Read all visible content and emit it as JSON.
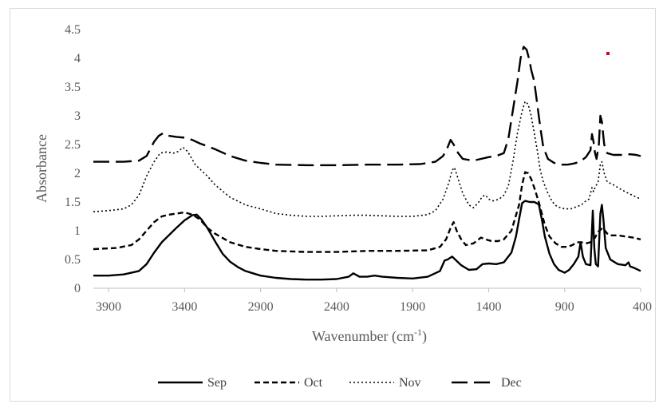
{
  "chart_data": {
    "type": "line",
    "xlabel": "Wavenumber (cm",
    "xlabel_sup": "-1",
    "xlabel_close": ")",
    "ylabel": "Absorbance",
    "xlim": [
      4000,
      400
    ],
    "x_reversed": true,
    "ylim": [
      0,
      4.5
    ],
    "y_ticks": [
      0,
      0.5,
      1,
      1.5,
      2,
      2.5,
      3,
      3.5,
      4,
      4.5
    ],
    "y_tick_labels": [
      "0",
      "0.5",
      "1",
      "1.5",
      "2",
      "2.5",
      "3",
      "3.5",
      "4",
      "4.5"
    ],
    "x_ticks": [
      3900,
      3400,
      2900,
      2400,
      1900,
      1400,
      900,
      400
    ],
    "x_tick_labels": [
      "3900",
      "3400",
      "2900",
      "2400",
      "1900",
      "1400",
      "900",
      "400"
    ],
    "grid": false,
    "legend_position": "bottom",
    "series": [
      {
        "name": "Sep",
        "style": "solid",
        "points": [
          [
            4000,
            0.22
          ],
          [
            3900,
            0.22
          ],
          [
            3800,
            0.24
          ],
          [
            3700,
            0.3
          ],
          [
            3650,
            0.42
          ],
          [
            3600,
            0.62
          ],
          [
            3550,
            0.8
          ],
          [
            3500,
            0.93
          ],
          [
            3450,
            1.06
          ],
          [
            3400,
            1.18
          ],
          [
            3350,
            1.27
          ],
          [
            3320,
            1.28
          ],
          [
            3290,
            1.2
          ],
          [
            3250,
            1.05
          ],
          [
            3200,
            0.82
          ],
          [
            3150,
            0.6
          ],
          [
            3100,
            0.46
          ],
          [
            3050,
            0.37
          ],
          [
            3000,
            0.3
          ],
          [
            2950,
            0.26
          ],
          [
            2900,
            0.22
          ],
          [
            2800,
            0.18
          ],
          [
            2700,
            0.16
          ],
          [
            2600,
            0.15
          ],
          [
            2500,
            0.15
          ],
          [
            2400,
            0.16
          ],
          [
            2320,
            0.2
          ],
          [
            2290,
            0.26
          ],
          [
            2250,
            0.2
          ],
          [
            2200,
            0.2
          ],
          [
            2150,
            0.22
          ],
          [
            2100,
            0.2
          ],
          [
            2000,
            0.18
          ],
          [
            1900,
            0.17
          ],
          [
            1800,
            0.2
          ],
          [
            1720,
            0.3
          ],
          [
            1690,
            0.48
          ],
          [
            1670,
            0.5
          ],
          [
            1640,
            0.55
          ],
          [
            1620,
            0.5
          ],
          [
            1580,
            0.4
          ],
          [
            1530,
            0.32
          ],
          [
            1480,
            0.33
          ],
          [
            1440,
            0.42
          ],
          [
            1400,
            0.43
          ],
          [
            1350,
            0.42
          ],
          [
            1300,
            0.45
          ],
          [
            1250,
            0.62
          ],
          [
            1220,
            0.9
          ],
          [
            1200,
            1.2
          ],
          [
            1180,
            1.48
          ],
          [
            1160,
            1.52
          ],
          [
            1130,
            1.5
          ],
          [
            1100,
            1.5
          ],
          [
            1070,
            1.46
          ],
          [
            1050,
            1.2
          ],
          [
            1030,
            0.9
          ],
          [
            1000,
            0.6
          ],
          [
            970,
            0.42
          ],
          [
            940,
            0.32
          ],
          [
            900,
            0.27
          ],
          [
            870,
            0.32
          ],
          [
            840,
            0.42
          ],
          [
            810,
            0.55
          ],
          [
            795,
            0.8
          ],
          [
            780,
            0.55
          ],
          [
            760,
            0.42
          ],
          [
            730,
            0.4
          ],
          [
            715,
            1.35
          ],
          [
            705,
            0.7
          ],
          [
            695,
            0.42
          ],
          [
            680,
            0.38
          ],
          [
            665,
            1.3
          ],
          [
            655,
            1.45
          ],
          [
            645,
            1.2
          ],
          [
            630,
            0.7
          ],
          [
            600,
            0.5
          ],
          [
            550,
            0.42
          ],
          [
            500,
            0.4
          ],
          [
            480,
            0.45
          ],
          [
            470,
            0.38
          ],
          [
            440,
            0.35
          ],
          [
            400,
            0.3
          ]
        ]
      },
      {
        "name": "Oct",
        "style": "dash",
        "points": [
          [
            4000,
            0.68
          ],
          [
            3850,
            0.7
          ],
          [
            3750,
            0.75
          ],
          [
            3700,
            0.85
          ],
          [
            3650,
            1.0
          ],
          [
            3600,
            1.15
          ],
          [
            3550,
            1.25
          ],
          [
            3500,
            1.28
          ],
          [
            3450,
            1.3
          ],
          [
            3400,
            1.32
          ],
          [
            3350,
            1.28
          ],
          [
            3300,
            1.2
          ],
          [
            3250,
            1.05
          ],
          [
            3200,
            0.95
          ],
          [
            3100,
            0.8
          ],
          [
            3000,
            0.72
          ],
          [
            2900,
            0.68
          ],
          [
            2800,
            0.65
          ],
          [
            2600,
            0.63
          ],
          [
            2400,
            0.63
          ],
          [
            2200,
            0.65
          ],
          [
            2000,
            0.65
          ],
          [
            1800,
            0.66
          ],
          [
            1720,
            0.72
          ],
          [
            1680,
            0.85
          ],
          [
            1650,
            1.05
          ],
          [
            1630,
            1.15
          ],
          [
            1610,
            1.0
          ],
          [
            1580,
            0.85
          ],
          [
            1550,
            0.75
          ],
          [
            1500,
            0.78
          ],
          [
            1450,
            0.88
          ],
          [
            1420,
            0.85
          ],
          [
            1380,
            0.82
          ],
          [
            1340,
            0.82
          ],
          [
            1300,
            0.85
          ],
          [
            1250,
            1.0
          ],
          [
            1200,
            1.45
          ],
          [
            1180,
            1.8
          ],
          [
            1160,
            2.02
          ],
          [
            1140,
            2.0
          ],
          [
            1120,
            1.9
          ],
          [
            1100,
            1.75
          ],
          [
            1070,
            1.5
          ],
          [
            1050,
            1.3
          ],
          [
            1030,
            1.1
          ],
          [
            1000,
            0.9
          ],
          [
            960,
            0.78
          ],
          [
            920,
            0.72
          ],
          [
            880,
            0.72
          ],
          [
            850,
            0.75
          ],
          [
            820,
            0.8
          ],
          [
            790,
            0.8
          ],
          [
            760,
            0.78
          ],
          [
            730,
            0.8
          ],
          [
            700,
            0.88
          ],
          [
            680,
            0.98
          ],
          [
            650,
            1.05
          ],
          [
            620,
            0.95
          ],
          [
            600,
            0.92
          ],
          [
            550,
            0.92
          ],
          [
            500,
            0.9
          ],
          [
            450,
            0.88
          ],
          [
            400,
            0.85
          ]
        ]
      },
      {
        "name": "Nov",
        "style": "dot",
        "points": [
          [
            4000,
            1.33
          ],
          [
            3900,
            1.35
          ],
          [
            3800,
            1.38
          ],
          [
            3750,
            1.45
          ],
          [
            3700,
            1.62
          ],
          [
            3650,
            1.95
          ],
          [
            3600,
            2.2
          ],
          [
            3560,
            2.35
          ],
          [
            3520,
            2.37
          ],
          [
            3470,
            2.35
          ],
          [
            3440,
            2.38
          ],
          [
            3410,
            2.45
          ],
          [
            3380,
            2.38
          ],
          [
            3330,
            2.15
          ],
          [
            3250,
            1.95
          ],
          [
            3200,
            1.8
          ],
          [
            3100,
            1.58
          ],
          [
            3000,
            1.45
          ],
          [
            2900,
            1.38
          ],
          [
            2800,
            1.3
          ],
          [
            2700,
            1.27
          ],
          [
            2600,
            1.25
          ],
          [
            2500,
            1.25
          ],
          [
            2400,
            1.26
          ],
          [
            2300,
            1.27
          ],
          [
            2200,
            1.27
          ],
          [
            2100,
            1.26
          ],
          [
            2000,
            1.25
          ],
          [
            1900,
            1.25
          ],
          [
            1800,
            1.28
          ],
          [
            1750,
            1.35
          ],
          [
            1700,
            1.55
          ],
          [
            1660,
            1.85
          ],
          [
            1640,
            2.05
          ],
          [
            1625,
            2.1
          ],
          [
            1600,
            1.9
          ],
          [
            1570,
            1.65
          ],
          [
            1530,
            1.45
          ],
          [
            1500,
            1.4
          ],
          [
            1470,
            1.48
          ],
          [
            1440,
            1.6
          ],
          [
            1420,
            1.62
          ],
          [
            1400,
            1.55
          ],
          [
            1370,
            1.52
          ],
          [
            1330,
            1.55
          ],
          [
            1300,
            1.62
          ],
          [
            1270,
            1.78
          ],
          [
            1240,
            2.2
          ],
          [
            1210,
            2.7
          ],
          [
            1180,
            3.08
          ],
          [
            1160,
            3.25
          ],
          [
            1140,
            3.2
          ],
          [
            1120,
            3.0
          ],
          [
            1100,
            2.7
          ],
          [
            1080,
            2.4
          ],
          [
            1060,
            2.05
          ],
          [
            1040,
            1.85
          ],
          [
            1010,
            1.65
          ],
          [
            980,
            1.5
          ],
          [
            950,
            1.42
          ],
          [
            900,
            1.38
          ],
          [
            860,
            1.38
          ],
          [
            820,
            1.42
          ],
          [
            790,
            1.45
          ],
          [
            760,
            1.52
          ],
          [
            740,
            1.55
          ],
          [
            720,
            1.75
          ],
          [
            710,
            1.68
          ],
          [
            700,
            1.75
          ],
          [
            680,
            1.85
          ],
          [
            665,
            2.15
          ],
          [
            655,
            2.2
          ],
          [
            640,
            2.0
          ],
          [
            620,
            1.85
          ],
          [
            580,
            1.8
          ],
          [
            530,
            1.72
          ],
          [
            480,
            1.65
          ],
          [
            440,
            1.6
          ],
          [
            400,
            1.55
          ]
        ]
      },
      {
        "name": "Dec",
        "style": "longdash",
        "points": [
          [
            4000,
            2.2
          ],
          [
            3900,
            2.2
          ],
          [
            3800,
            2.2
          ],
          [
            3700,
            2.22
          ],
          [
            3650,
            2.3
          ],
          [
            3600,
            2.55
          ],
          [
            3570,
            2.65
          ],
          [
            3540,
            2.7
          ],
          [
            3500,
            2.65
          ],
          [
            3450,
            2.63
          ],
          [
            3400,
            2.62
          ],
          [
            3350,
            2.58
          ],
          [
            3300,
            2.52
          ],
          [
            3200,
            2.42
          ],
          [
            3100,
            2.3
          ],
          [
            3000,
            2.22
          ],
          [
            2900,
            2.18
          ],
          [
            2800,
            2.15
          ],
          [
            2600,
            2.14
          ],
          [
            2400,
            2.14
          ],
          [
            2200,
            2.15
          ],
          [
            2000,
            2.15
          ],
          [
            1850,
            2.16
          ],
          [
            1750,
            2.2
          ],
          [
            1700,
            2.3
          ],
          [
            1670,
            2.45
          ],
          [
            1650,
            2.58
          ],
          [
            1630,
            2.5
          ],
          [
            1600,
            2.35
          ],
          [
            1570,
            2.25
          ],
          [
            1500,
            2.22
          ],
          [
            1450,
            2.25
          ],
          [
            1400,
            2.28
          ],
          [
            1350,
            2.3
          ],
          [
            1300,
            2.35
          ],
          [
            1270,
            2.6
          ],
          [
            1240,
            3.1
          ],
          [
            1210,
            3.6
          ],
          [
            1190,
            4.0
          ],
          [
            1170,
            4.2
          ],
          [
            1150,
            4.15
          ],
          [
            1130,
            3.95
          ],
          [
            1120,
            3.8
          ],
          [
            1100,
            3.6
          ],
          [
            1080,
            3.2
          ],
          [
            1060,
            2.8
          ],
          [
            1040,
            2.45
          ],
          [
            1010,
            2.25
          ],
          [
            970,
            2.18
          ],
          [
            930,
            2.15
          ],
          [
            880,
            2.15
          ],
          [
            840,
            2.17
          ],
          [
            800,
            2.2
          ],
          [
            760,
            2.28
          ],
          [
            730,
            2.4
          ],
          [
            720,
            2.68
          ],
          [
            710,
            2.55
          ],
          [
            700,
            2.35
          ],
          [
            690,
            2.25
          ],
          [
            675,
            2.5
          ],
          [
            665,
            3.0
          ],
          [
            655,
            2.9
          ],
          [
            640,
            2.5
          ],
          [
            620,
            2.35
          ],
          [
            580,
            2.32
          ],
          [
            520,
            2.32
          ],
          [
            470,
            2.33
          ],
          [
            430,
            2.32
          ],
          [
            400,
            2.3
          ]
        ]
      }
    ]
  },
  "colors": {
    "line": "#000000",
    "axis": "#bfbfbf",
    "tick_text": "#595959",
    "marker": "#e0001b"
  }
}
